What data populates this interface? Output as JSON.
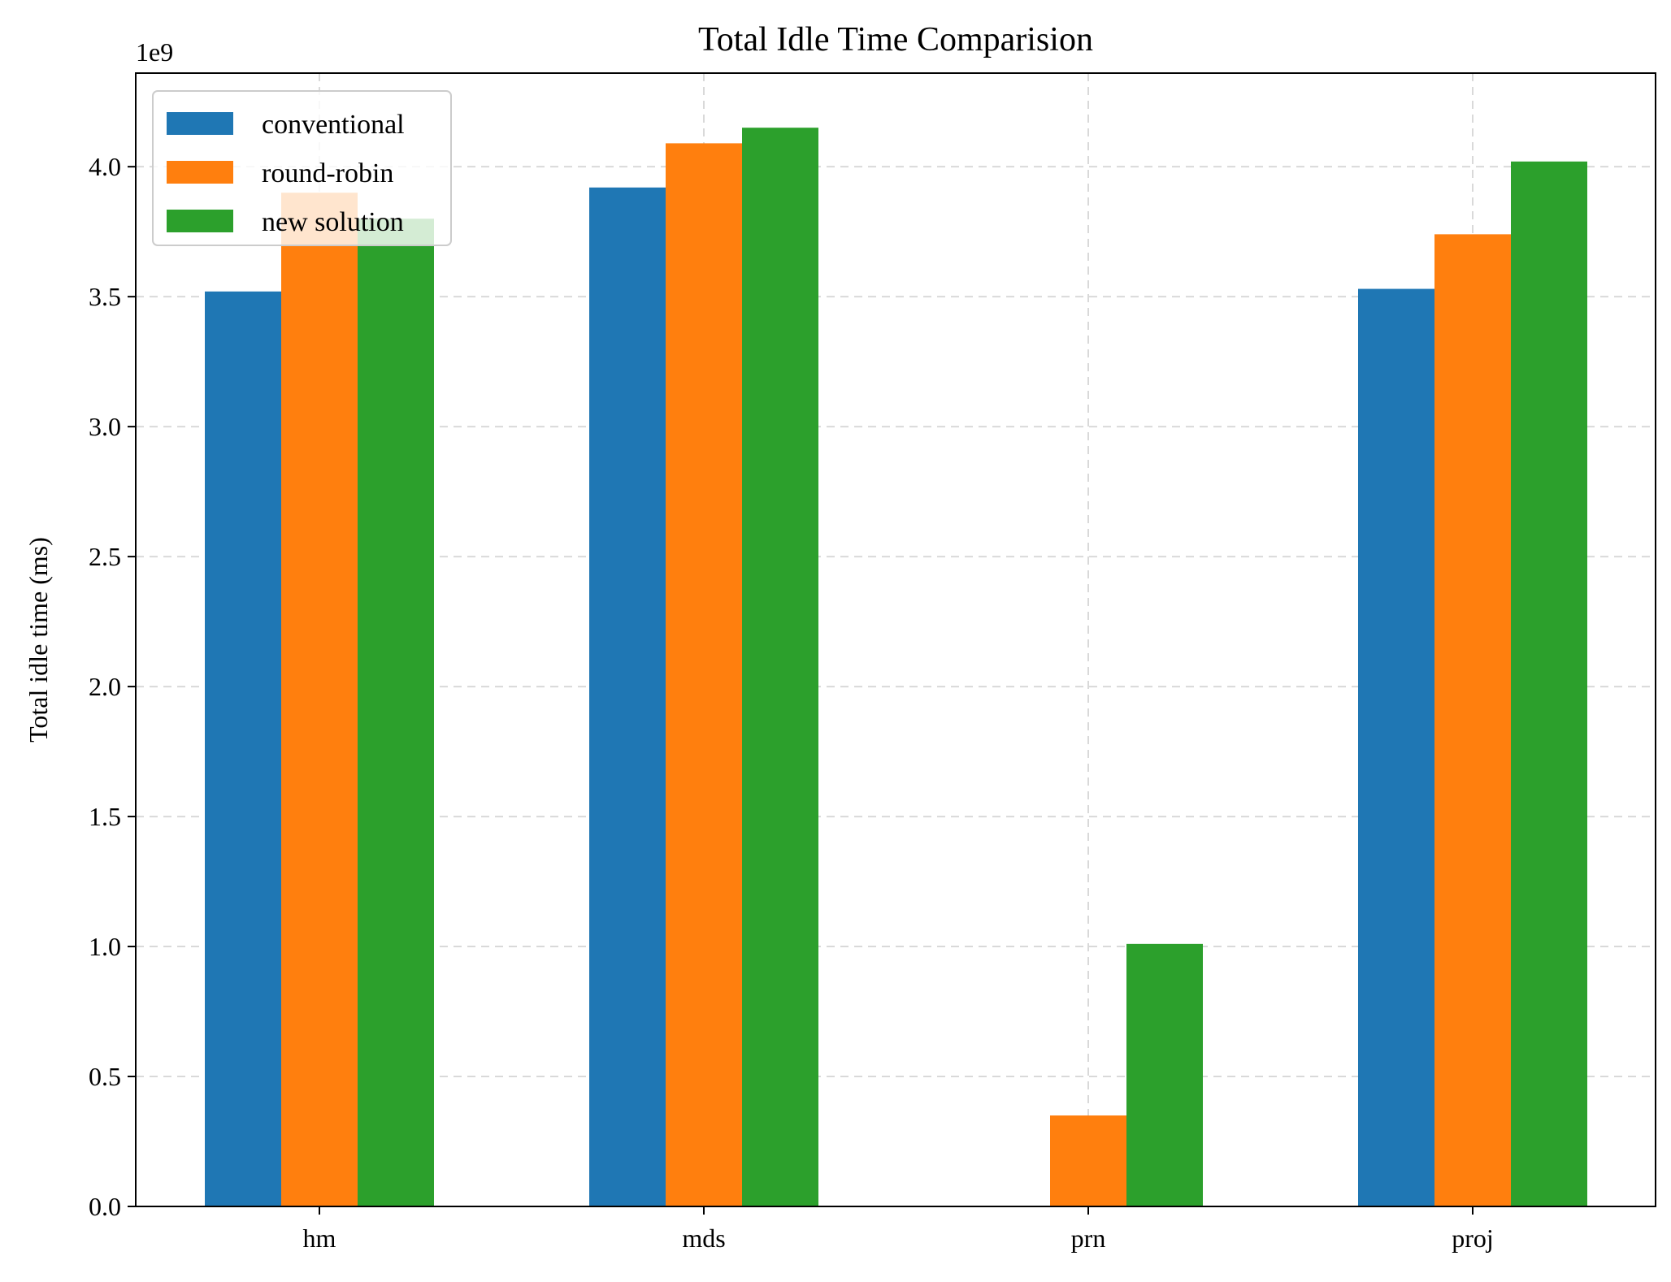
{
  "chart_data": {
    "type": "bar",
    "title": "Total Idle Time Comparision",
    "xlabel": "",
    "ylabel": "Total idle time (ms)",
    "y_offset_label": "1e9",
    "categories": [
      "hm",
      "mds",
      "prn",
      "proj"
    ],
    "series": [
      {
        "name": "conventional",
        "color": "#1f77b4",
        "values": [
          3.52,
          3.92,
          0,
          3.53
        ]
      },
      {
        "name": "round-robin",
        "color": "#ff7f0e",
        "values": [
          3.9,
          4.09,
          0.35,
          3.74
        ]
      },
      {
        "name": "new solution",
        "color": "#2ca02c",
        "values": [
          3.8,
          4.15,
          1.01,
          4.02
        ]
      }
    ],
    "ylim": [
      0,
      4.36
    ],
    "yticks": [
      "0.0",
      "0.5",
      "1.0",
      "1.5",
      "2.0",
      "2.5",
      "3.0",
      "3.5",
      "4.0"
    ],
    "grid": true,
    "legend_position": "top-left"
  }
}
